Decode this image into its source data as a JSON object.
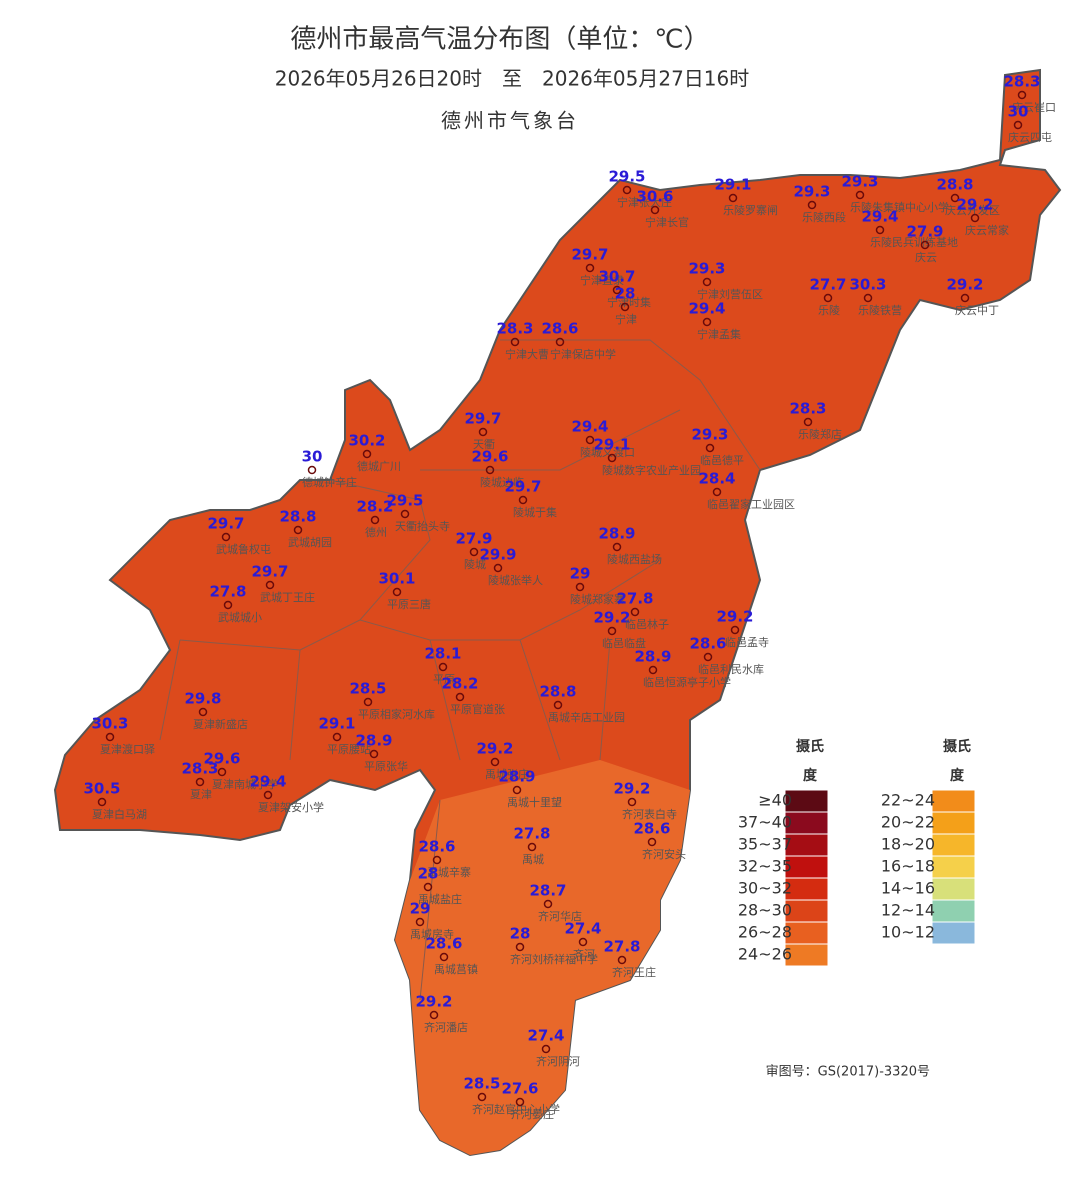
{
  "header": {
    "title": "德州市最高气温分布图（单位：℃）",
    "subtitle": "2026年05月26日20时　至　2026年05月27日16时",
    "agency": "德州市气象台"
  },
  "stations": [
    {
      "value": 28.3,
      "name": "庆云崔口"
    },
    {
      "value": 30,
      "name": "庆云四屯"
    },
    {
      "value": 29.5,
      "name": "宁津张大庄"
    },
    {
      "value": 30.6,
      "name": "宁津长官"
    },
    {
      "value": 29.1,
      "name": "乐陵罗寨闸"
    },
    {
      "value": 29.3,
      "name": "乐陵西段"
    },
    {
      "value": 29.3,
      "name": "乐陵朱集镇中心小学"
    },
    {
      "value": 29.4,
      "name": "乐陵民兵训练基地"
    },
    {
      "value": 28.8,
      "name": "庆云开发区"
    },
    {
      "value": 29.2,
      "name": "庆云常家"
    },
    {
      "value": 27.9,
      "name": "庆云"
    },
    {
      "value": 29.7,
      "name": "宁津直隶"
    },
    {
      "value": 30.7,
      "name": "宁津时集"
    },
    {
      "value": 28,
      "name": "宁津"
    },
    {
      "value": 29.3,
      "name": "宁津刘营伍区"
    },
    {
      "value": 29.4,
      "name": "宁津孟集"
    },
    {
      "value": 27.7,
      "name": "乐陵"
    },
    {
      "value": 30.3,
      "name": "乐陵铁营"
    },
    {
      "value": 29.2,
      "name": "庆云中丁"
    },
    {
      "value": 28.3,
      "name": "宁津大曹"
    },
    {
      "value": 28.6,
      "name": "宁津保店中学"
    },
    {
      "value": 28.3,
      "name": "乐陵郑店"
    },
    {
      "value": 29.7,
      "name": "天衢"
    },
    {
      "value": 29.4,
      "name": "陵城义渡口"
    },
    {
      "value": 29.1,
      "name": "陵城数字农业产业园"
    },
    {
      "value": 29.3,
      "name": "临邑德平"
    },
    {
      "value": 29.6,
      "name": "陵城边临"
    },
    {
      "value": 28.4,
      "name": "临邑翟家工业园区"
    },
    {
      "value": 30,
      "name": "德城钟辛庄"
    },
    {
      "value": 30.2,
      "name": "德城广川"
    },
    {
      "value": 29.7,
      "name": "陵城于集"
    },
    {
      "value": 28.2,
      "name": "德州"
    },
    {
      "value": 29.5,
      "name": "天衢抬头寺"
    },
    {
      "value": 29.7,
      "name": "武城鲁权屯"
    },
    {
      "value": 28.8,
      "name": "武城胡园"
    },
    {
      "value": 27.9,
      "name": "陵城"
    },
    {
      "value": 29.9,
      "name": "陵城张举人"
    },
    {
      "value": 28.9,
      "name": "陵城西盐场"
    },
    {
      "value": 29.7,
      "name": "武城丁王庄"
    },
    {
      "value": 27.8,
      "name": "武城城小"
    },
    {
      "value": 30.1,
      "name": "平原三唐"
    },
    {
      "value": 29,
      "name": "陵城郑家寨"
    },
    {
      "value": 29.2,
      "name": "临邑临盘"
    },
    {
      "value": 27.8,
      "name": "临邑林子"
    },
    {
      "value": 29.2,
      "name": "临邑孟寺"
    },
    {
      "value": 28.6,
      "name": "临邑利民水库"
    },
    {
      "value": 28.9,
      "name": "临邑恒源亭子小学"
    },
    {
      "value": 28.1,
      "name": "平原"
    },
    {
      "value": 28.2,
      "name": "平原官道张"
    },
    {
      "value": 28.5,
      "name": "平原相家河水库"
    },
    {
      "value": 28.8,
      "name": "禹城辛店工业园"
    },
    {
      "value": 29.8,
      "name": "夏津新盛店"
    },
    {
      "value": 30.3,
      "name": "夏津渡口驿"
    },
    {
      "value": 29.1,
      "name": "平原腰站"
    },
    {
      "value": 28.9,
      "name": "平原张华"
    },
    {
      "value": 29.2,
      "name": "禹城张庄"
    },
    {
      "value": 29.6,
      "name": "夏津南城小学"
    },
    {
      "value": 28.3,
      "name": "夏津"
    },
    {
      "value": 28.9,
      "name": "禹城十里望"
    },
    {
      "value": 29.4,
      "name": "夏津架安小学"
    },
    {
      "value": 30.5,
      "name": "夏津白马湖"
    },
    {
      "value": 29.2,
      "name": "齐河表白寺"
    },
    {
      "value": 28.6,
      "name": "齐河安头"
    },
    {
      "value": 28.6,
      "name": "禹城辛寨"
    },
    {
      "value": 27.8,
      "name": "禹城"
    },
    {
      "value": 28,
      "name": "禹城盐庄"
    },
    {
      "value": 28.7,
      "name": "齐河华店"
    },
    {
      "value": 29,
      "name": "禹城房寺"
    },
    {
      "value": 28,
      "name": "齐河刘桥祥福中学"
    },
    {
      "value": 27.4,
      "name": "齐河"
    },
    {
      "value": 28.6,
      "name": "禹城莒镇"
    },
    {
      "value": 27.8,
      "name": "齐河王庄"
    },
    {
      "value": 29.2,
      "name": "齐河潘店"
    },
    {
      "value": 27.4,
      "name": "齐河阴河"
    },
    {
      "value": 28.5,
      "name": "齐河赵官中心小学"
    },
    {
      "value": 27.6,
      "name": "齐河晏庄"
    }
  ],
  "legend": {
    "left": {
      "title_top": "摄氏",
      "title_bottom": "度",
      "items": [
        {
          "label": "≥40",
          "color": "#5c0a14"
        },
        {
          "label": "37~40",
          "color": "#8b0a1e"
        },
        {
          "label": "35~37",
          "color": "#a50d14"
        },
        {
          "label": "32~35",
          "color": "#c0100e"
        },
        {
          "label": "30~32",
          "color": "#d42c10"
        },
        {
          "label": "28~30",
          "color": "#dc4418"
        },
        {
          "label": "26~28",
          "color": "#e86020"
        },
        {
          "label": "24~26",
          "color": "#ee7a24"
        }
      ]
    },
    "right": {
      "title_top": "摄氏",
      "title_bottom": "度",
      "items": [
        {
          "label": "22~24",
          "color": "#f28c1a"
        },
        {
          "label": "20~22",
          "color": "#f4a019"
        },
        {
          "label": "18~20",
          "color": "#f6b62a"
        },
        {
          "label": "16~18",
          "color": "#f5d04a"
        },
        {
          "label": "14~16",
          "color": "#d8e07a"
        },
        {
          "label": "12~14",
          "color": "#8fd0b0"
        },
        {
          "label": "10~12",
          "color": "#8ab8dc"
        }
      ]
    }
  },
  "approval": "审图号：GS(2017)-3320号"
}
